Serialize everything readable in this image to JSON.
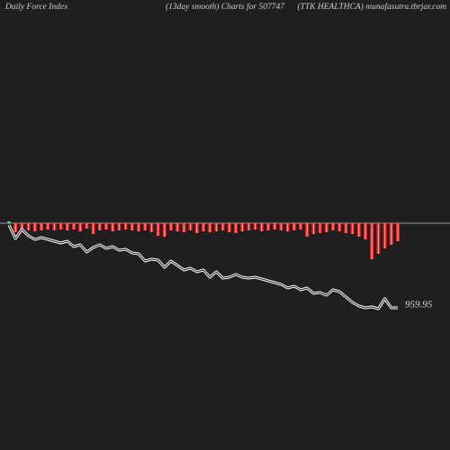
{
  "chart_data": {
    "type": "bar",
    "title": "Daily Force  Index",
    "subtitle": "(13day smooth) Charts for 507747",
    "source": "(TTK HEALTHCA) munafasutra.tbrjar.com",
    "series": [
      {
        "type": "bar",
        "color": "#ff1a1a",
        "positive_color": "#33cc33",
        "values": [
          2,
          -10,
          -8,
          -8,
          -9,
          -8,
          -7,
          -8,
          -7,
          -8,
          -7,
          -9,
          -6,
          -12,
          -8,
          -7,
          -9,
          -8,
          -7,
          -8,
          -9,
          -8,
          -10,
          -14,
          -15,
          -8,
          -9,
          -10,
          -8,
          -11,
          -9,
          -10,
          -9,
          -8,
          -10,
          -11,
          -9,
          -8,
          -7,
          -9,
          -8,
          -7,
          -8,
          -9,
          -8,
          -7,
          -15,
          -12,
          -11,
          -10,
          -8,
          -9,
          -11,
          -12,
          -15,
          -18,
          -40,
          -34,
          -28,
          -24,
          -20
        ]
      },
      {
        "type": "line",
        "color": "#ffffff",
        "values": [
          1143.95,
          1113.95,
          1133.95,
          1119.95,
          1111.95,
          1115.95,
          1111.95,
          1107.95,
          1103.95,
          1107.95,
          1095.95,
          1099.95,
          1083.95,
          1093.95,
          1099.95,
          1091.95,
          1095.95,
          1087.95,
          1089.95,
          1081.95,
          1079.95,
          1063.95,
          1067.95,
          1065.95,
          1049.95,
          1063.95,
          1053.95,
          1043.95,
          1047.95,
          1039.95,
          1043.95,
          1027.95,
          1039.95,
          1025.95,
          1027.95,
          1033.95,
          1027.95,
          1025.95,
          1027.95,
          1023.95,
          1019.95,
          1015.95,
          1011.95,
          1003.95,
          1007.95,
          999.95,
          1003.95,
          991.95,
          993.95,
          987.95,
          999.95,
          995.95,
          983.95,
          971.95,
          963.95,
          959.95,
          961.95,
          957.95,
          979.95,
          959.95,
          959.95
        ]
      }
    ]
  }
}
